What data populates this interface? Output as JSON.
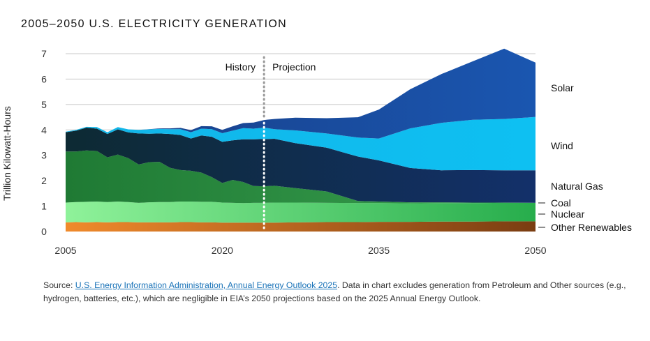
{
  "title": "2005–2050 U.S. ELECTRICITY GENERATION",
  "source": {
    "prefix": "Source: ",
    "link_text": "U.S. Energy Information Administration, Annual Energy Outlook 2025",
    "suffix": ". Data in chart excludes generation from Petroleum and Other sources (e.g., hydrogen, batteries, etc.), which are negligible in EIA’s 2050 projections based on the 2025 Annual Energy Outlook."
  },
  "chart_data": {
    "type": "area",
    "stacked": true,
    "title": "2005–2050 U.S. ELECTRICITY GENERATION",
    "xlabel": "",
    "ylabel": "Trillion Kilowatt-Hours",
    "xlim": [
      2005,
      2050
    ],
    "ylim": [
      0,
      7
    ],
    "x_ticks": [
      2005,
      2020,
      2035,
      2050
    ],
    "y_ticks": [
      0,
      1,
      2,
      3,
      4,
      5,
      6,
      7
    ],
    "grid": true,
    "annotations": {
      "divider_year": 2024,
      "left_text": "History",
      "right_text": "Projection"
    },
    "x": [
      2005,
      2006,
      2007,
      2008,
      2009,
      2010,
      2011,
      2012,
      2013,
      2014,
      2015,
      2016,
      2017,
      2018,
      2019,
      2020,
      2021,
      2022,
      2023,
      2024,
      2025,
      2027,
      2030,
      2033,
      2035,
      2038,
      2041,
      2044,
      2047,
      2050
    ],
    "series": [
      {
        "name": "Other Renewables",
        "color_start": "#f08a2c",
        "color_end": "#7a3d12",
        "values": [
          0.36,
          0.37,
          0.36,
          0.37,
          0.36,
          0.37,
          0.37,
          0.36,
          0.36,
          0.36,
          0.36,
          0.37,
          0.37,
          0.36,
          0.36,
          0.35,
          0.35,
          0.35,
          0.35,
          0.35,
          0.35,
          0.36,
          0.37,
          0.37,
          0.38,
          0.38,
          0.39,
          0.39,
          0.4,
          0.4
        ]
      },
      {
        "name": "Nuclear",
        "color_start": "#8ff29a",
        "color_end": "#27ad4c",
        "values": [
          0.78,
          0.79,
          0.81,
          0.81,
          0.8,
          0.81,
          0.79,
          0.77,
          0.79,
          0.8,
          0.8,
          0.81,
          0.81,
          0.81,
          0.81,
          0.79,
          0.78,
          0.77,
          0.78,
          0.78,
          0.79,
          0.78,
          0.76,
          0.75,
          0.74,
          0.73,
          0.73,
          0.73,
          0.73,
          0.73
        ]
      },
      {
        "name": "Coal",
        "color_start": "#1f7a34",
        "color_end": "#3aa050",
        "values": [
          2.01,
          1.99,
          2.02,
          1.99,
          1.76,
          1.85,
          1.73,
          1.51,
          1.58,
          1.58,
          1.35,
          1.24,
          1.21,
          1.15,
          0.97,
          0.77,
          0.9,
          0.83,
          0.66,
          0.65,
          0.66,
          0.57,
          0.45,
          0.08,
          0.06,
          0.04,
          0.03,
          0.02,
          0.01,
          0.0
        ]
      },
      {
        "name": "Natural Gas",
        "color_start": "#0d2a33",
        "color_end": "#13306a",
        "values": [
          0.76,
          0.82,
          0.9,
          0.88,
          0.92,
          0.99,
          1.01,
          1.22,
          1.12,
          1.12,
          1.33,
          1.38,
          1.27,
          1.46,
          1.59,
          1.62,
          1.56,
          1.68,
          1.84,
          1.86,
          1.85,
          1.77,
          1.72,
          1.75,
          1.62,
          1.35,
          1.26,
          1.28,
          1.27,
          1.28
        ]
      },
      {
        "name": "Wind",
        "color_start": "#12b5e8",
        "color_end": "#0ec0f2",
        "values": [
          0.02,
          0.03,
          0.03,
          0.06,
          0.07,
          0.09,
          0.12,
          0.14,
          0.17,
          0.18,
          0.19,
          0.23,
          0.25,
          0.27,
          0.3,
          0.34,
          0.38,
          0.44,
          0.42,
          0.45,
          0.38,
          0.5,
          0.56,
          0.75,
          0.86,
          1.56,
          1.87,
          1.98,
          2.02,
          2.1
        ]
      },
      {
        "name": "Solar",
        "color_start": "#183e86",
        "color_end": "#1a56b0",
        "values": [
          0.0,
          0.0,
          0.0,
          0.0,
          0.0,
          0.0,
          0.0,
          0.0,
          0.01,
          0.02,
          0.03,
          0.05,
          0.08,
          0.1,
          0.11,
          0.13,
          0.17,
          0.2,
          0.24,
          0.3,
          0.4,
          0.5,
          0.6,
          0.8,
          1.14,
          1.54,
          1.92,
          2.3,
          2.77,
          2.14
        ]
      }
    ],
    "legend_labels": [
      "Solar",
      "Wind",
      "Natural Gas",
      "Coal",
      "Nuclear",
      "Other Renewables"
    ]
  }
}
